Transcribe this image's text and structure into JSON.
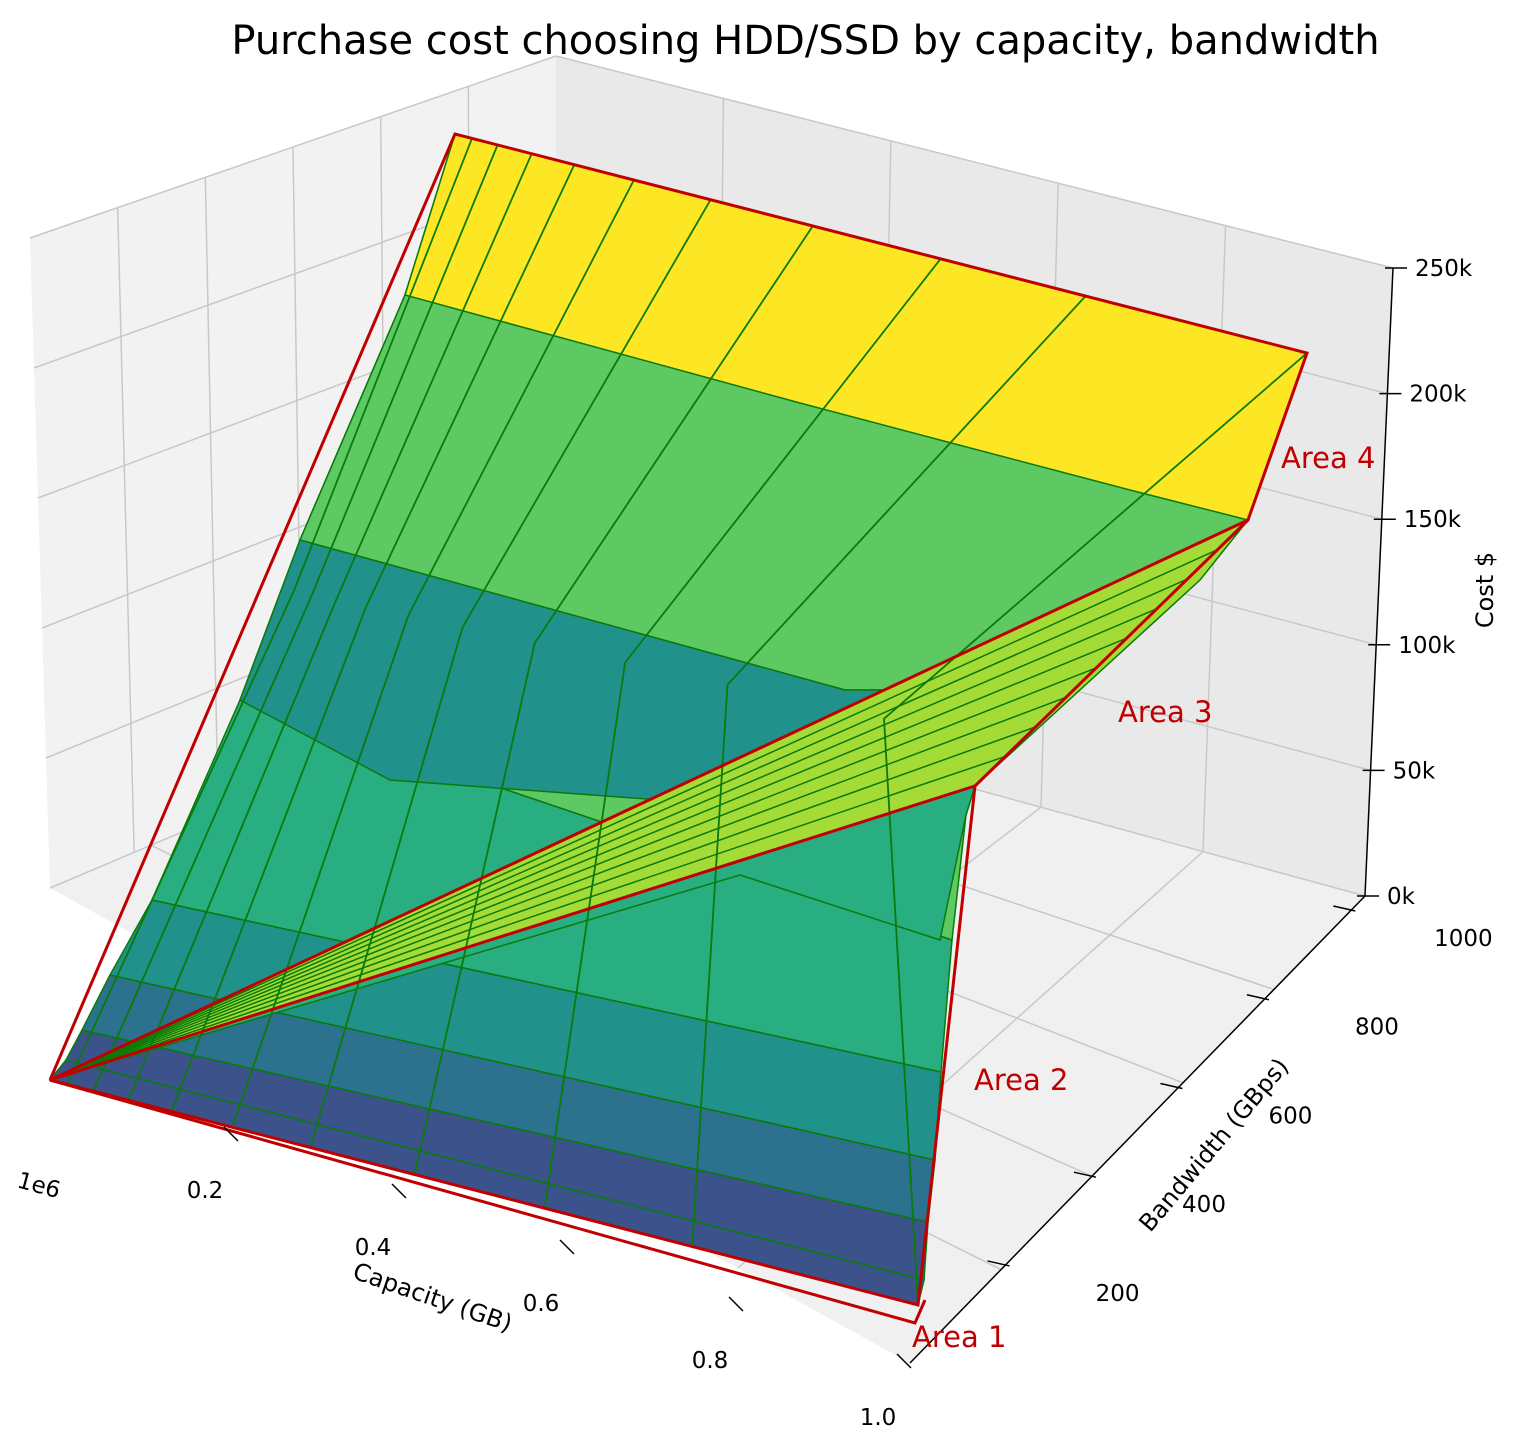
{
  "chart_data": {
    "type": "surface3d",
    "title": "Purchase cost choosing HDD/SSD by capacity, bandwidth",
    "xlabel": "Capacity (GB)",
    "ylabel": "Bandwidth (GBps)",
    "zlabel": "Cost $",
    "x_offset_label": "1e6",
    "xlim": [
      0,
      1.0
    ],
    "ylim": [
      0,
      1000
    ],
    "zlim": [
      0,
      250000
    ],
    "x_ticks": [
      "0.2",
      "0.4",
      "0.6",
      "0.8",
      "1.0"
    ],
    "y_ticks": [
      "200",
      "400",
      "600",
      "800",
      "1000"
    ],
    "z_ticks": [
      "0k",
      "50k",
      "100k",
      "150k",
      "200k",
      "250k"
    ],
    "colormap": "viridis",
    "grid": true,
    "areas": [
      {
        "name": "Area 1",
        "color": "#c00000"
      },
      {
        "name": "Area 2",
        "color": "#c00000"
      },
      {
        "name": "Area 3",
        "color": "#c00000"
      },
      {
        "name": "Area 4",
        "color": "#c00000"
      }
    ],
    "cost_plateaus_k": [
      0,
      50,
      100,
      150,
      200,
      230
    ]
  }
}
